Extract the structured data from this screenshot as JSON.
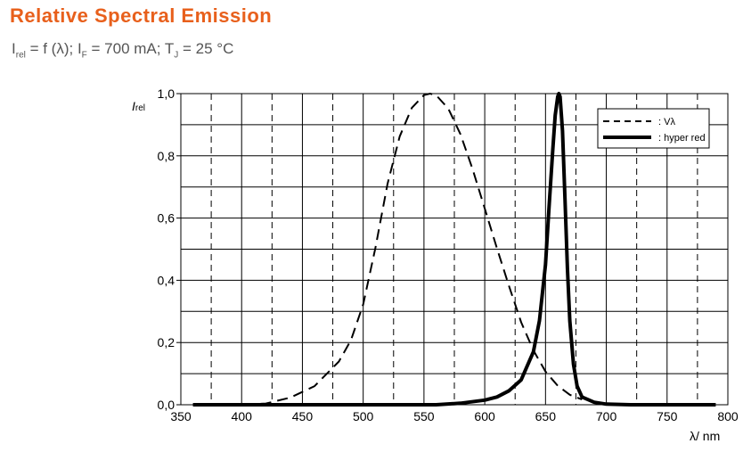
{
  "header": {
    "title": "Relative Spectral Emission",
    "subtitle_parts": [
      "I",
      "rel",
      " = f (λ); I",
      "F",
      " = 700 mA; T",
      "J",
      " = 25 °C"
    ]
  },
  "chart_data": {
    "type": "line",
    "xlabel": "λ/ nm",
    "ylabel": "Irel",
    "xlim": [
      350,
      800
    ],
    "ylim": [
      0,
      1.0
    ],
    "x_ticks": [
      "350",
      "400",
      "450",
      "500",
      "550",
      "600",
      "650",
      "700",
      "750",
      "800"
    ],
    "y_ticks": [
      "0,0",
      "0,2",
      "0,4",
      "0,6",
      "0,8",
      "1,0"
    ],
    "grid": true,
    "legend_position": "top-right",
    "series": [
      {
        "name": "Vλ",
        "style": "dashed",
        "x": [
          360,
          400,
          420,
          440,
          460,
          480,
          490,
          500,
          510,
          520,
          530,
          540,
          550,
          555,
          560,
          570,
          580,
          590,
          600,
          610,
          620,
          630,
          640,
          650,
          660,
          670,
          680
        ],
        "y": [
          0.0,
          0.0,
          0.004,
          0.023,
          0.06,
          0.139,
          0.208,
          0.323,
          0.503,
          0.71,
          0.862,
          0.954,
          0.995,
          1.0,
          0.995,
          0.952,
          0.87,
          0.757,
          0.631,
          0.503,
          0.381,
          0.265,
          0.175,
          0.107,
          0.061,
          0.032,
          0.017
        ]
      },
      {
        "name": "hyper red",
        "style": "solid",
        "x": [
          360,
          560,
          580,
          600,
          610,
          620,
          630,
          640,
          645,
          650,
          653,
          656,
          658,
          660,
          661,
          662,
          664,
          666,
          668,
          670,
          673,
          676,
          680,
          690,
          700,
          720,
          760,
          790
        ],
        "y": [
          0.0,
          0.0,
          0.005,
          0.015,
          0.025,
          0.045,
          0.08,
          0.17,
          0.27,
          0.45,
          0.64,
          0.82,
          0.93,
          0.99,
          1.0,
          0.99,
          0.88,
          0.66,
          0.44,
          0.27,
          0.13,
          0.06,
          0.025,
          0.008,
          0.002,
          0.0,
          0.0,
          0.0
        ]
      }
    ]
  }
}
